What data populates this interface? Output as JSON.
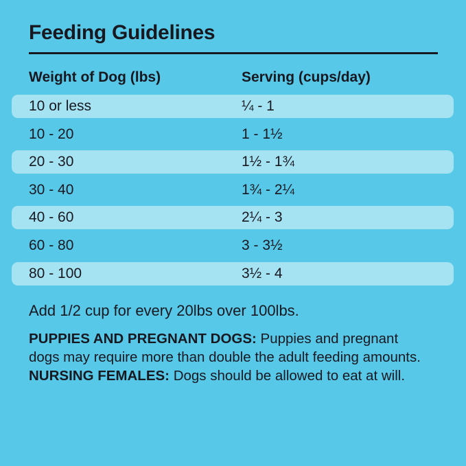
{
  "page": {
    "title": "Feeding Guidelines"
  },
  "colors": {
    "background": "#57C8E7",
    "row_highlight": "#A6E3F2",
    "text": "#181821"
  },
  "table": {
    "headers": {
      "weight": "Weight of Dog (lbs)",
      "serving": "Serving (cups/day)"
    },
    "rows": [
      {
        "weight": "10 or less",
        "serving": "¼ - 1",
        "highlighted": true
      },
      {
        "weight": "10 - 20",
        "serving": "1 - 1½",
        "highlighted": false
      },
      {
        "weight": "20 - 30",
        "serving": "1½ - 1¾",
        "highlighted": true
      },
      {
        "weight": "30 - 40",
        "serving": "1¾ - 2¼",
        "highlighted": false
      },
      {
        "weight": "40 - 60",
        "serving": "2¼ - 3",
        "highlighted": true
      },
      {
        "weight": "60 - 80",
        "serving": "3 - 3½",
        "highlighted": false
      },
      {
        "weight": "80 - 100",
        "serving": "3½ - 4",
        "highlighted": true
      }
    ]
  },
  "notes": {
    "over_100": "Add 1/2 cup for every 20lbs over 100lbs.",
    "puppies_label": "PUPPIES AND PREGNANT DOGS:",
    "puppies_text": "Puppies and pregnant dogs may require more than double the adult feeding amounts.",
    "nursing_label": "NURSING FEMALES:",
    "nursing_text": "Dogs should be allowed to eat at will."
  }
}
